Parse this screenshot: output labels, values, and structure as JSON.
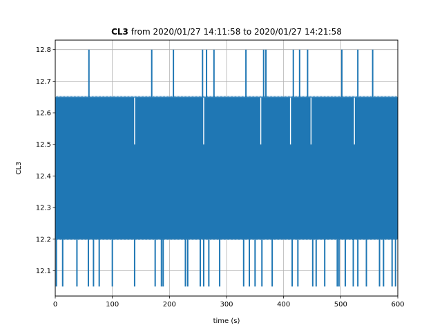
{
  "chart_data": {
    "type": "line",
    "title_bold": "CL3",
    "title_rest": " from 2020/01/27 14:11:58 to 2020/01/27 14:21:58",
    "xlabel": "time (s)",
    "ylabel": "CL3",
    "xlim": [
      0,
      600
    ],
    "ylim": [
      12.02,
      12.83
    ],
    "grid": true,
    "line_color": "#1f77b4",
    "x_ticks": [
      "0",
      "100",
      "200",
      "300",
      "400",
      "500",
      "600"
    ],
    "y_ticks": [
      "12.1",
      "12.2",
      "12.3",
      "12.4",
      "12.5",
      "12.6",
      "12.7",
      "12.8"
    ],
    "series": [
      {
        "name": "",
        "description": "dense oscillation between ~12.2 and ~12.65 over 0–600 s, with spikes up to 12.8 and drops to 12.05",
        "band": {
          "x": [
            0,
            600
          ],
          "low": 12.2,
          "high": 12.65
        },
        "spikes_up": {
          "value": 12.8,
          "x": [
            59,
            169,
            207,
            258,
            265,
            278,
            334,
            365,
            369,
            417,
            428,
            442,
            502,
            530,
            556
          ]
        },
        "drops_down": {
          "value": 12.05,
          "x": [
            2,
            13,
            38,
            58,
            67,
            77,
            100,
            139,
            175,
            186,
            189,
            228,
            232,
            254,
            260,
            269,
            288,
            330,
            340,
            350,
            362,
            380,
            415,
            425,
            451,
            457,
            472,
            494,
            497,
            508,
            522,
            530,
            545,
            568,
            575,
            590,
            596
          ]
        },
        "gaps_to_mid": {
          "value": 12.5,
          "x": [
            139,
            260,
            360,
            412,
            448,
            524
          ]
        },
        "gaps_to_top": {
          "value": 12.65,
          "x": [
            23
          ]
        }
      }
    ]
  }
}
